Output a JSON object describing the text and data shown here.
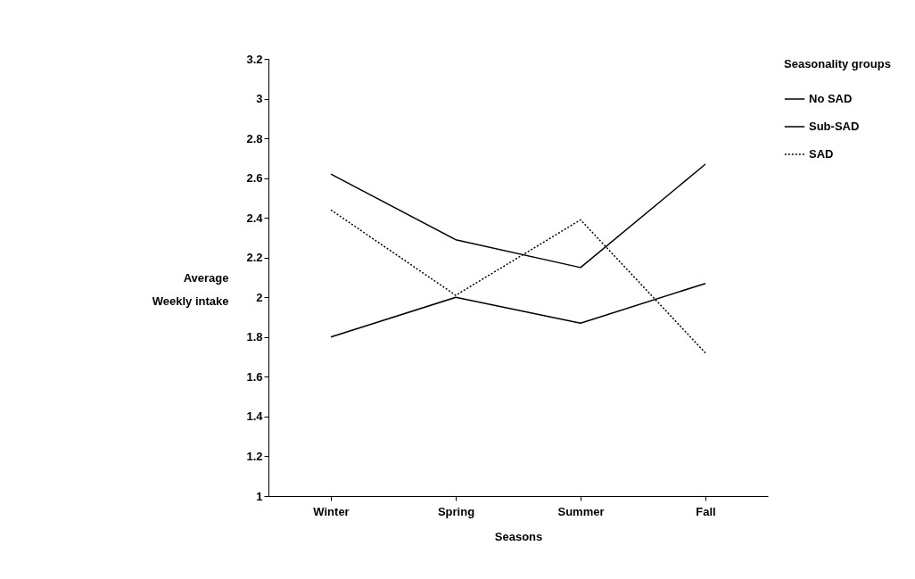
{
  "chart_data": {
    "type": "line",
    "xlabel": "Seasons",
    "ylabel": "Average\nWeekly intake",
    "legend_title": "Seasonality groups",
    "categories": [
      "Winter",
      "Spring",
      "Summer",
      "Fall"
    ],
    "series": [
      {
        "name": "No SAD",
        "color": "#000000",
        "line_style": "solid",
        "values": [
          1.8,
          2.0,
          1.87,
          2.07
        ]
      },
      {
        "name": "Sub-SAD",
        "color": "#000000",
        "line_style": "solid",
        "values": [
          2.62,
          2.29,
          2.15,
          2.67
        ]
      },
      {
        "name": "SAD",
        "color": "#000000",
        "line_style": "dotted",
        "values": [
          2.44,
          2.01,
          2.39,
          1.72
        ]
      }
    ],
    "ylim": [
      1,
      3.2
    ],
    "yticks": [
      1,
      1.2,
      1.4,
      1.6,
      1.8,
      2,
      2.2,
      2.4,
      2.6,
      2.8,
      3,
      3.2
    ],
    "grid": false,
    "legend": "top right",
    "marker": "none"
  }
}
